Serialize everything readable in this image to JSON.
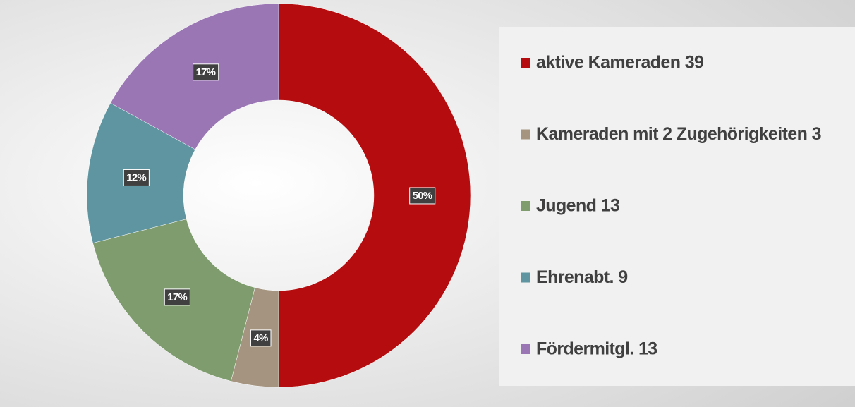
{
  "chart_data": {
    "type": "donut",
    "categories": [
      "aktive Kameraden 39",
      "Kameraden mit 2 Zugehörigkeiten 3",
      "Jugend 13",
      "Ehrenabt. 9",
      "Fördermitgl. 13"
    ],
    "values": [
      50,
      4,
      17,
      12,
      17
    ],
    "value_labels": [
      "50%",
      "4%",
      "17%",
      "12%",
      "17%"
    ],
    "colors": [
      "#b50d0f",
      "#a59580",
      "#7e9c6d",
      "#5e95a0",
      "#9a76b4"
    ],
    "legend": "right"
  }
}
